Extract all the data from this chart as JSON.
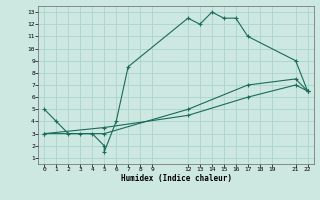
{
  "xlabel": "Humidex (Indice chaleur)",
  "ylabel": "",
  "bg_color": "#cce8e0",
  "grid_color": "#aad4cc",
  "line_color": "#1a6b5a",
  "xlim": [
    -0.5,
    22.5
  ],
  "ylim": [
    0.5,
    13.5
  ],
  "xticks": [
    0,
    1,
    2,
    3,
    4,
    5,
    6,
    7,
    8,
    9,
    12,
    13,
    14,
    15,
    16,
    17,
    18,
    19,
    21,
    22
  ],
  "yticks": [
    1,
    2,
    3,
    4,
    5,
    6,
    7,
    8,
    9,
    10,
    11,
    12,
    13
  ],
  "lines": [
    {
      "x": [
        0,
        1,
        2,
        3,
        4,
        5,
        5,
        6,
        7,
        12,
        13,
        14,
        15,
        16,
        17,
        21,
        22
      ],
      "y": [
        5,
        4,
        3,
        3,
        3,
        2,
        1.5,
        4,
        8.5,
        12.5,
        12,
        13,
        12.5,
        12.5,
        11,
        9,
        6.5
      ]
    },
    {
      "x": [
        0,
        5,
        12,
        17,
        21,
        22
      ],
      "y": [
        3,
        3,
        5,
        7,
        7.5,
        6.5
      ]
    },
    {
      "x": [
        0,
        5,
        12,
        17,
        21,
        22
      ],
      "y": [
        3,
        3.5,
        4.5,
        6,
        7,
        6.5
      ]
    }
  ]
}
